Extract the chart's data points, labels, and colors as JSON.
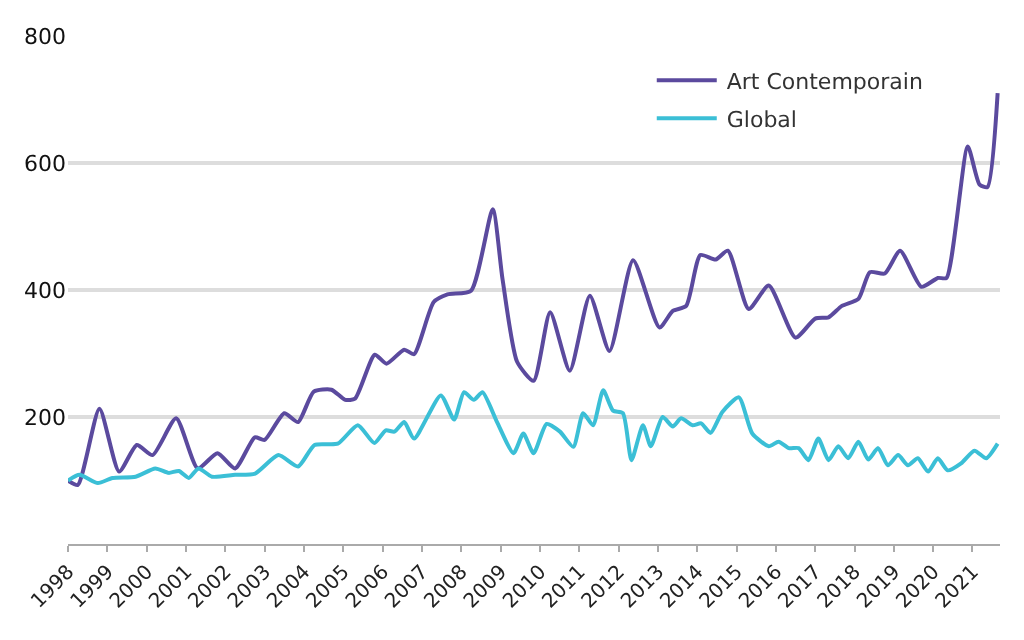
{
  "chart_data": {
    "type": "line",
    "x": [
      1998.0,
      1998.25,
      1998.8,
      1999.3,
      1999.75,
      2000.15,
      2000.75,
      2001.3,
      2001.8,
      2002.25,
      2002.75,
      2003.0,
      2003.5,
      2003.85,
      2004.25,
      2004.7,
      2005.05,
      2005.3,
      2005.8,
      2006.1,
      2006.55,
      2006.8,
      2007.3,
      2007.65,
      2008.25,
      2008.8,
      2009.05,
      2009.42,
      2009.84,
      2010.26,
      2010.76,
      2011.27,
      2011.77,
      2012.37,
      2013.04,
      2013.38,
      2013.72,
      2014.08,
      2014.47,
      2014.78,
      2015.31,
      2015.82,
      2016.5,
      2017.0,
      2017.34,
      2017.68,
      2018.1,
      2018.39,
      2018.77,
      2019.16,
      2019.7,
      2020.12,
      2020.34,
      2020.88,
      2021.18,
      2021.38,
      2021.64
    ],
    "series": [
      {
        "name": "Art Contemporain",
        "color": "#5b4a9e",
        "values": [
          100,
          93,
          213,
          114,
          156,
          140,
          198,
          119,
          143,
          119,
          168,
          164,
          206,
          192,
          240,
          243,
          227,
          229,
          298,
          284,
          306,
          299,
          381,
          393,
          399,
          527,
          417,
          287,
          257,
          365,
          273,
          391,
          304,
          447,
          341,
          367,
          375,
          455,
          448,
          462,
          370,
          407,
          325,
          355,
          357,
          375,
          386,
          428,
          426,
          462,
          405,
          419,
          419,
          626,
          566,
          562,
          710
        ]
      },
      {
        "name": "Global",
        "color": "#3bbfd6",
        "x": [
          1998.0,
          1998.29,
          1998.76,
          1999.13,
          1999.72,
          2000.22,
          2000.56,
          2000.82,
          2001.07,
          2001.32,
          2001.66,
          2002.25,
          2002.76,
          2003.35,
          2003.85,
          2004.27,
          2004.86,
          2005.37,
          2005.79,
          2006.08,
          2006.3,
          2006.55,
          2006.8,
          2007.48,
          2007.82,
          2008.07,
          2008.32,
          2008.54,
          2008.91,
          2009.33,
          2009.58,
          2009.84,
          2010.17,
          2010.51,
          2010.85,
          2011.1,
          2011.35,
          2011.61,
          2011.86,
          2012.11,
          2012.33,
          2012.62,
          2012.82,
          2013.12,
          2013.38,
          2013.59,
          2013.88,
          2014.1,
          2014.34,
          2014.64,
          2015.06,
          2015.4,
          2015.82,
          2016.07,
          2016.33,
          2016.58,
          2016.83,
          2017.08,
          2017.34,
          2017.59,
          2017.84,
          2018.1,
          2018.35,
          2018.6,
          2018.85,
          2019.11,
          2019.36,
          2019.61,
          2019.87,
          2020.12,
          2020.37,
          2020.71,
          2021.05,
          2021.35,
          2021.64
        ],
        "values": [
          100,
          109,
          96,
          104,
          106,
          119,
          112,
          115,
          104,
          119,
          106,
          109,
          111,
          140,
          122,
          156,
          158,
          187,
          159,
          179,
          177,
          192,
          166,
          234,
          196,
          239,
          227,
          239,
          192,
          143,
          174,
          143,
          189,
          177,
          153,
          206,
          187,
          242,
          210,
          206,
          132,
          187,
          154,
          200,
          185,
          198,
          187,
          190,
          175,
          208,
          231,
          174,
          154,
          161,
          151,
          151,
          132,
          166,
          132,
          154,
          135,
          161,
          133,
          151,
          124,
          140,
          124,
          135,
          114,
          135,
          116,
          127,
          147,
          135,
          158
        ]
      }
    ],
    "xlim": [
      1998,
      2021.7
    ],
    "xticks": [
      1998,
      1999,
      2000,
      2001,
      2002,
      2003,
      2004,
      2005,
      2006,
      2007,
      2008,
      2009,
      2010,
      2011,
      2012,
      2013,
      2014,
      2015,
      2016,
      2017,
      2018,
      2019,
      2020,
      2021
    ],
    "ylim": [
      0,
      800
    ],
    "yticks": [
      {
        "value": 0,
        "label": null
      },
      200,
      400,
      600,
      800
    ],
    "grid": "y",
    "legend": "top right",
    "marker": "none",
    "line_style": "solid"
  }
}
